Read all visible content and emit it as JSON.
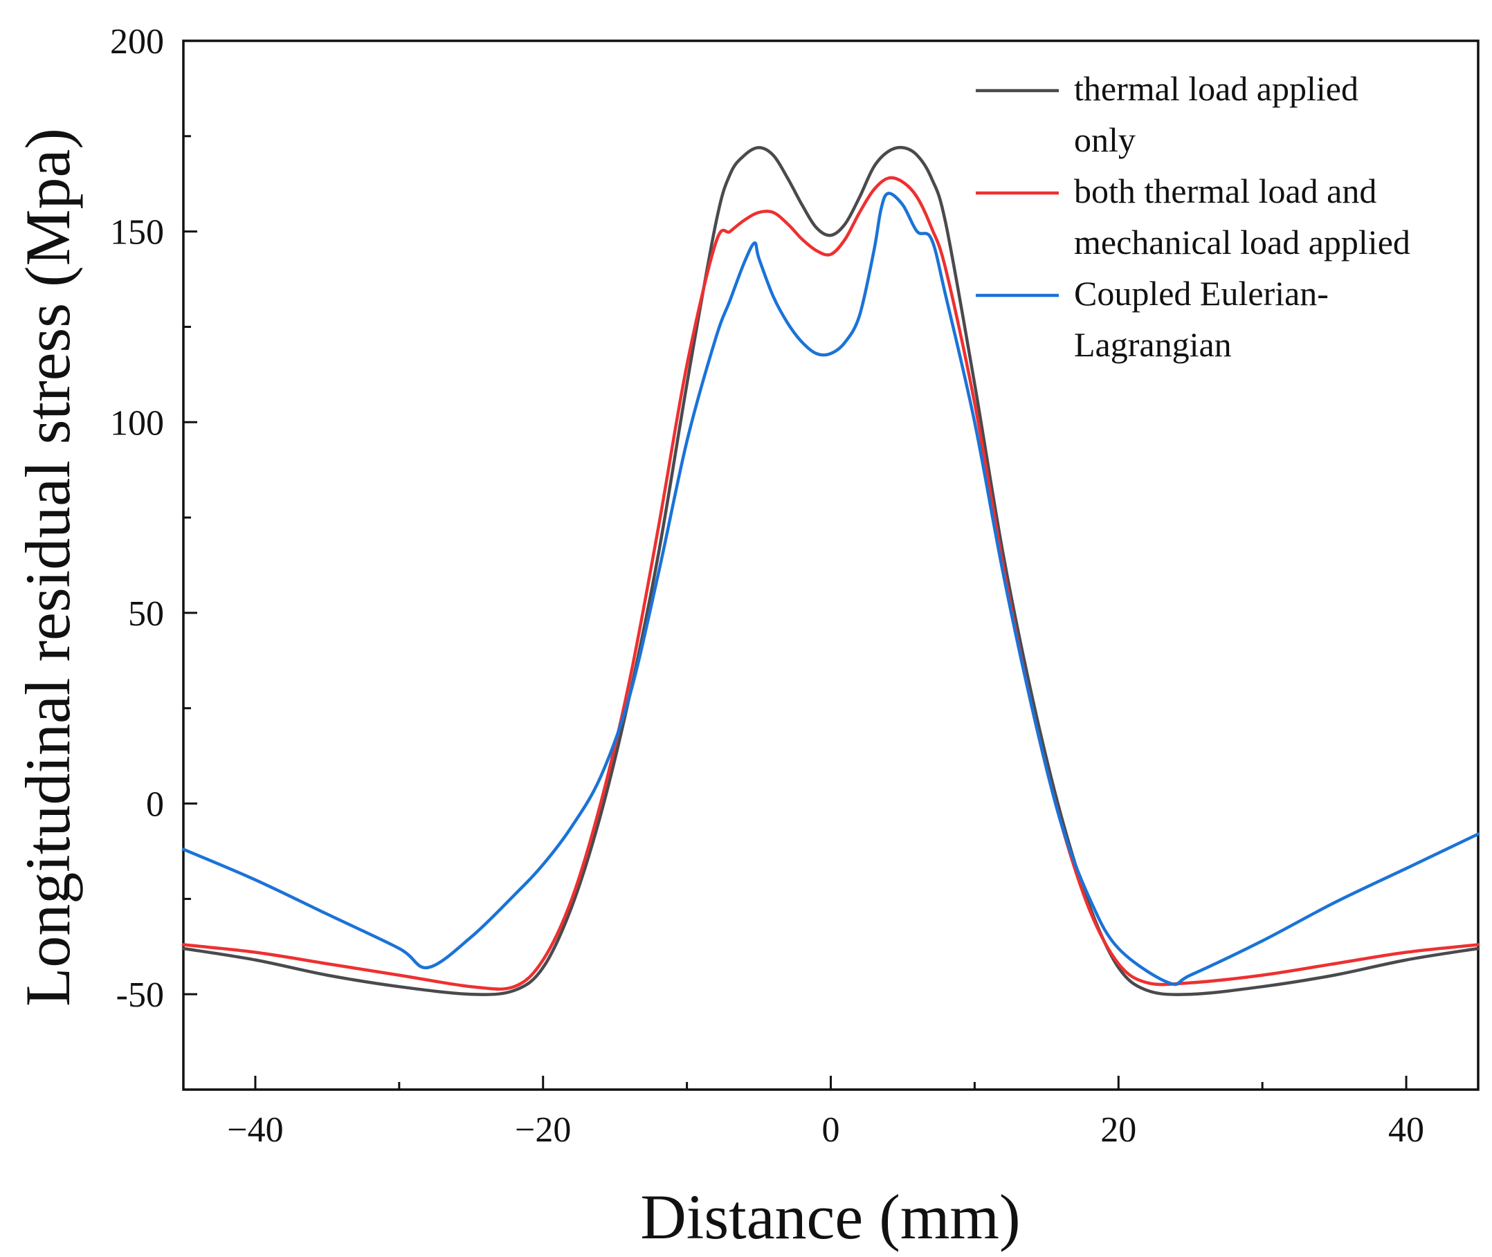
{
  "chart_data": {
    "type": "line",
    "title": "",
    "xlabel": "Distance (mm)",
    "ylabel": "Longitudinal residual stress (Mpa)",
    "xlim": [
      -45,
      45
    ],
    "ylim": [
      -75,
      200
    ],
    "grid": false,
    "legend_position": "top-right",
    "x_ticks": [
      -40,
      -20,
      0,
      20,
      40
    ],
    "x_tick_labels": [
      "−40",
      "−20",
      "0",
      "20",
      "40"
    ],
    "y_ticks": [
      -50,
      0,
      50,
      100,
      150,
      200
    ],
    "y_tick_labels": [
      "-50",
      "0",
      "50",
      "100",
      "150",
      "200"
    ],
    "series": [
      {
        "name": "thermal load applied only",
        "legend_lines": [
          "thermal load applied",
          "only"
        ],
        "color": "#4a4a4e",
        "x": [
          -45,
          -40,
          -35,
          -30,
          -25,
          -22,
          -20,
          -18,
          -16,
          -14,
          -12,
          -10,
          -8,
          -7,
          -6,
          -5,
          -4,
          -3,
          -2,
          -1,
          0,
          1,
          2,
          3,
          4,
          5,
          6,
          7,
          8,
          10,
          12,
          14,
          16,
          18,
          20,
          22,
          25,
          30,
          35,
          40,
          45
        ],
        "y": [
          -38,
          -41,
          -45,
          -48,
          -50,
          -49,
          -43,
          -27,
          -3,
          28,
          65,
          110,
          152,
          165,
          170,
          172,
          170,
          164,
          157,
          151,
          149,
          152,
          159,
          167,
          171,
          172,
          170,
          164,
          152,
          110,
          65,
          28,
          -3,
          -27,
          -43,
          -49,
          -50,
          -48,
          -45,
          -41,
          -38
        ]
      },
      {
        "name": "both thermal load and mechanical load applied",
        "legend_lines": [
          "both thermal load and",
          " mechanical load applied"
        ],
        "color": "#ee3030",
        "x": [
          -45,
          -40,
          -35,
          -30,
          -25,
          -22,
          -20,
          -18,
          -16,
          -14,
          -12,
          -10,
          -8,
          -7,
          -6,
          -5,
          -4,
          -3,
          -2,
          -1,
          0,
          1,
          2,
          3,
          4,
          5,
          6,
          7,
          8,
          10,
          12,
          14,
          16,
          18,
          20,
          22,
          25,
          30,
          35,
          40,
          45
        ],
        "y": [
          -37,
          -39,
          -42,
          -45,
          -48,
          -48,
          -41,
          -25,
          0,
          32,
          72,
          115,
          147,
          150,
          153,
          155,
          155,
          152,
          148,
          145,
          144,
          148,
          155,
          161,
          164,
          163,
          159,
          151,
          140,
          105,
          62,
          25,
          -5,
          -28,
          -42,
          -47,
          -47,
          -45,
          -42,
          -39,
          -37
        ]
      },
      {
        "name": "Coupled Eulerian-Lagrangian",
        "legend_lines": [
          "Coupled Eulerian-",
          "Lagrangian"
        ],
        "color": "#1a73d8",
        "x": [
          -45,
          -40,
          -35,
          -30,
          -28,
          -25,
          -22,
          -20,
          -18,
          -16,
          -14,
          -12,
          -10,
          -8,
          -7,
          -6,
          -5.3,
          -5,
          -4,
          -3,
          -2,
          -1,
          0,
          1,
          2,
          3,
          3.5,
          4,
          5,
          6,
          7,
          8,
          10,
          12,
          14,
          16,
          18,
          20,
          23.5,
          25,
          30,
          35,
          40,
          45
        ],
        "y": [
          -12,
          -20,
          -29,
          -38,
          -43,
          -35,
          -24,
          -16,
          -6,
          7,
          28,
          60,
          95,
          122,
          132,
          142,
          147,
          143,
          133,
          126,
          121,
          118,
          118,
          121,
          128,
          145,
          156,
          160,
          157,
          150,
          148,
          133,
          100,
          60,
          25,
          -5,
          -25,
          -38,
          -47,
          -45,
          -36,
          -26,
          -17,
          -8
        ]
      }
    ]
  }
}
